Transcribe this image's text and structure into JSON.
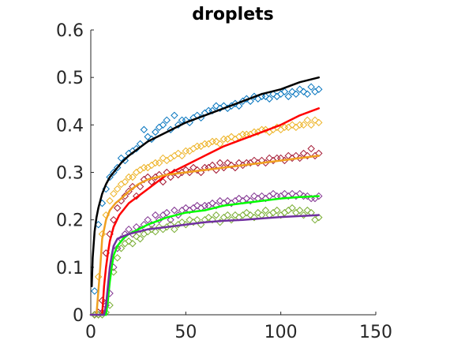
{
  "chart_data": {
    "type": "scatter",
    "title": "droplets",
    "xlabel": "",
    "ylabel": "",
    "xlim": [
      0,
      150
    ],
    "ylim": [
      0,
      0.6
    ],
    "x_ticks": [
      0,
      50,
      100,
      150
    ],
    "y_ticks": [
      0,
      0.1,
      0.2,
      0.3,
      0.4,
      0.5,
      0.6
    ],
    "x_tick_labels": [
      "0",
      "50",
      "100",
      "150"
    ],
    "y_tick_labels": [
      "0",
      "0.1",
      "0.2",
      "0.3",
      "0.4",
      "0.5",
      "0.6"
    ],
    "grid": false,
    "series": [
      {
        "type": "scatter",
        "color": "#0072bd",
        "x": [
          2,
          4,
          6,
          8,
          10,
          12,
          14,
          16,
          18,
          20,
          22,
          24,
          26,
          28,
          30,
          32,
          34,
          36,
          38,
          40,
          42,
          44,
          46,
          48,
          50,
          52,
          54,
          56,
          58,
          60,
          62,
          64,
          66,
          68,
          70,
          72,
          74,
          76,
          78,
          80,
          82,
          84,
          86,
          88,
          90,
          92,
          94,
          96,
          98,
          100,
          102,
          104,
          106,
          108,
          110,
          112,
          114,
          116,
          118,
          120
        ],
        "y": [
          0.05,
          0.19,
          0.235,
          0.265,
          0.29,
          0.3,
          0.31,
          0.33,
          0.325,
          0.34,
          0.345,
          0.35,
          0.36,
          0.39,
          0.375,
          0.37,
          0.385,
          0.395,
          0.4,
          0.41,
          0.39,
          0.42,
          0.4,
          0.41,
          0.41,
          0.405,
          0.415,
          0.42,
          0.415,
          0.425,
          0.43,
          0.43,
          0.44,
          0.435,
          0.44,
          0.435,
          0.44,
          0.445,
          0.44,
          0.45,
          0.455,
          0.45,
          0.46,
          0.455,
          0.46,
          0.46,
          0.455,
          0.465,
          0.46,
          0.465,
          0.47,
          0.46,
          0.47,
          0.465,
          0.475,
          0.47,
          0.465,
          0.48,
          0.47,
          0.475
        ]
      },
      {
        "type": "scatter",
        "color": "#edb120",
        "x": [
          2,
          4,
          6,
          8,
          10,
          12,
          14,
          16,
          18,
          20,
          22,
          24,
          26,
          28,
          30,
          32,
          34,
          36,
          38,
          40,
          42,
          44,
          46,
          48,
          50,
          52,
          54,
          56,
          58,
          60,
          62,
          64,
          66,
          68,
          70,
          72,
          74,
          76,
          78,
          80,
          82,
          84,
          86,
          88,
          90,
          92,
          94,
          96,
          98,
          100,
          102,
          104,
          106,
          108,
          110,
          112,
          114,
          116,
          118,
          120
        ],
        "y": [
          0.0,
          0.08,
          0.17,
          0.21,
          0.24,
          0.255,
          0.265,
          0.275,
          0.28,
          0.29,
          0.29,
          0.3,
          0.305,
          0.31,
          0.31,
          0.315,
          0.32,
          0.32,
          0.33,
          0.325,
          0.33,
          0.335,
          0.34,
          0.335,
          0.345,
          0.345,
          0.35,
          0.355,
          0.355,
          0.36,
          0.36,
          0.365,
          0.365,
          0.36,
          0.37,
          0.37,
          0.375,
          0.37,
          0.375,
          0.38,
          0.38,
          0.38,
          0.385,
          0.385,
          0.39,
          0.39,
          0.385,
          0.39,
          0.395,
          0.39,
          0.395,
          0.395,
          0.4,
          0.395,
          0.4,
          0.4,
          0.41,
          0.4,
          0.41,
          0.405
        ]
      },
      {
        "type": "scatter",
        "color": "#a2142f",
        "x": [
          2,
          4,
          6,
          8,
          10,
          12,
          14,
          16,
          18,
          20,
          22,
          24,
          26,
          28,
          30,
          32,
          34,
          36,
          38,
          40,
          42,
          44,
          46,
          48,
          50,
          52,
          54,
          56,
          58,
          60,
          62,
          64,
          66,
          68,
          70,
          72,
          74,
          76,
          78,
          80,
          82,
          84,
          86,
          88,
          90,
          92,
          94,
          96,
          98,
          100,
          102,
          104,
          106,
          108,
          110,
          112,
          114,
          116,
          118,
          120
        ],
        "y": [
          0.0,
          0.005,
          0.03,
          0.13,
          0.17,
          0.2,
          0.225,
          0.24,
          0.25,
          0.26,
          0.27,
          0.25,
          0.27,
          0.285,
          0.29,
          0.28,
          0.29,
          0.295,
          0.28,
          0.3,
          0.29,
          0.3,
          0.295,
          0.3,
          0.305,
          0.3,
          0.31,
          0.305,
          0.3,
          0.31,
          0.31,
          0.315,
          0.305,
          0.32,
          0.31,
          0.32,
          0.315,
          0.31,
          0.32,
          0.315,
          0.32,
          0.32,
          0.325,
          0.32,
          0.325,
          0.32,
          0.33,
          0.325,
          0.33,
          0.33,
          0.325,
          0.335,
          0.33,
          0.335,
          0.33,
          0.34,
          0.335,
          0.35,
          0.335,
          0.34
        ]
      },
      {
        "type": "scatter",
        "color": "#7e2f8e",
        "x": [
          2,
          4,
          6,
          8,
          10,
          12,
          14,
          16,
          18,
          20,
          22,
          24,
          26,
          28,
          30,
          32,
          34,
          36,
          38,
          40,
          42,
          44,
          46,
          48,
          50,
          52,
          54,
          56,
          58,
          60,
          62,
          64,
          66,
          68,
          70,
          72,
          74,
          76,
          78,
          80,
          82,
          84,
          86,
          88,
          90,
          92,
          94,
          96,
          98,
          100,
          102,
          104,
          106,
          108,
          110,
          112,
          114,
          116,
          118,
          120
        ],
        "y": [
          0.0,
          0.0,
          0.005,
          0.02,
          0.045,
          0.1,
          0.14,
          0.16,
          0.17,
          0.18,
          0.17,
          0.185,
          0.18,
          0.19,
          0.2,
          0.19,
          0.21,
          0.2,
          0.21,
          0.215,
          0.2,
          0.22,
          0.21,
          0.22,
          0.225,
          0.22,
          0.225,
          0.23,
          0.225,
          0.23,
          0.23,
          0.235,
          0.23,
          0.24,
          0.235,
          0.24,
          0.235,
          0.24,
          0.245,
          0.24,
          0.245,
          0.24,
          0.25,
          0.245,
          0.25,
          0.245,
          0.25,
          0.255,
          0.25,
          0.25,
          0.255,
          0.25,
          0.255,
          0.25,
          0.255,
          0.25,
          0.25,
          0.245,
          0.245,
          0.25
        ]
      },
      {
        "type": "scatter",
        "color": "#77ac30",
        "x": [
          2,
          4,
          6,
          8,
          10,
          12,
          14,
          16,
          18,
          20,
          22,
          24,
          26,
          28,
          30,
          32,
          34,
          36,
          38,
          40,
          42,
          44,
          46,
          48,
          50,
          52,
          54,
          56,
          58,
          60,
          62,
          64,
          66,
          68,
          70,
          72,
          74,
          76,
          78,
          80,
          82,
          84,
          86,
          88,
          90,
          92,
          94,
          96,
          98,
          100,
          102,
          104,
          106,
          108,
          110,
          112,
          114,
          116,
          118,
          120
        ],
        "y": [
          0.0,
          0.0,
          0.0,
          0.005,
          0.02,
          0.09,
          0.12,
          0.14,
          0.15,
          0.155,
          0.15,
          0.165,
          0.16,
          0.17,
          0.175,
          0.18,
          0.175,
          0.185,
          0.18,
          0.185,
          0.19,
          0.18,
          0.19,
          0.195,
          0.19,
          0.2,
          0.195,
          0.2,
          0.19,
          0.2,
          0.205,
          0.2,
          0.21,
          0.195,
          0.205,
          0.21,
          0.2,
          0.21,
          0.205,
          0.21,
          0.215,
          0.21,
          0.205,
          0.215,
          0.21,
          0.22,
          0.21,
          0.215,
          0.22,
          0.21,
          0.215,
          0.22,
          0.225,
          0.215,
          0.22,
          0.21,
          0.22,
          0.215,
          0.2,
          0.205
        ]
      },
      {
        "type": "line",
        "color": "#000000",
        "x": [
          0.5,
          1,
          2,
          3,
          4,
          6,
          8,
          10,
          13,
          16,
          20,
          25,
          30,
          40,
          50,
          60,
          70,
          80,
          90,
          100,
          110,
          120
        ],
        "y": [
          0.06,
          0.12,
          0.175,
          0.205,
          0.225,
          0.255,
          0.275,
          0.29,
          0.305,
          0.32,
          0.335,
          0.35,
          0.365,
          0.385,
          0.405,
          0.42,
          0.435,
          0.45,
          0.465,
          0.475,
          0.49,
          0.5
        ]
      },
      {
        "type": "line",
        "color": "#ff0000",
        "x": [
          0,
          6,
          7,
          8,
          9,
          10,
          12,
          15,
          18,
          20,
          25,
          30,
          35,
          40,
          50,
          60,
          70,
          80,
          90,
          100,
          110,
          120
        ],
        "y": [
          0.0,
          0.0,
          0.06,
          0.1,
          0.13,
          0.155,
          0.185,
          0.21,
          0.225,
          0.235,
          0.25,
          0.265,
          0.28,
          0.295,
          0.315,
          0.335,
          0.355,
          0.37,
          0.385,
          0.4,
          0.42,
          0.435
        ]
      },
      {
        "type": "line",
        "color": "#f0a020",
        "x": [
          0,
          3,
          4,
          5,
          6,
          8,
          10,
          13,
          16,
          20,
          25,
          30,
          40,
          50,
          60,
          70,
          80,
          90,
          100,
          110,
          120
        ],
        "y": [
          0.0,
          0.0,
          0.05,
          0.1,
          0.16,
          0.2,
          0.22,
          0.235,
          0.245,
          0.26,
          0.275,
          0.285,
          0.295,
          0.3,
          0.305,
          0.31,
          0.315,
          0.32,
          0.325,
          0.33,
          0.335
        ]
      },
      {
        "type": "line",
        "color": "#00ff00",
        "x": [
          0,
          8,
          9,
          10,
          11,
          12,
          14,
          17,
          20,
          25,
          30,
          40,
          50,
          60,
          70,
          80,
          90,
          100,
          110,
          120
        ],
        "y": [
          0.0,
          0.0,
          0.03,
          0.07,
          0.1,
          0.125,
          0.145,
          0.16,
          0.17,
          0.18,
          0.19,
          0.205,
          0.215,
          0.22,
          0.23,
          0.235,
          0.24,
          0.245,
          0.248,
          0.25
        ]
      },
      {
        "type": "line",
        "color": "#7030a0",
        "x": [
          0,
          7,
          8,
          9,
          10,
          11,
          12,
          14,
          17,
          20,
          25,
          30,
          40,
          50,
          60,
          70,
          80,
          90,
          100,
          110,
          120
        ],
        "y": [
          0.0,
          0.0,
          0.02,
          0.06,
          0.1,
          0.125,
          0.145,
          0.16,
          0.165,
          0.17,
          0.175,
          0.18,
          0.185,
          0.19,
          0.195,
          0.198,
          0.2,
          0.203,
          0.206,
          0.208,
          0.21
        ]
      }
    ]
  }
}
